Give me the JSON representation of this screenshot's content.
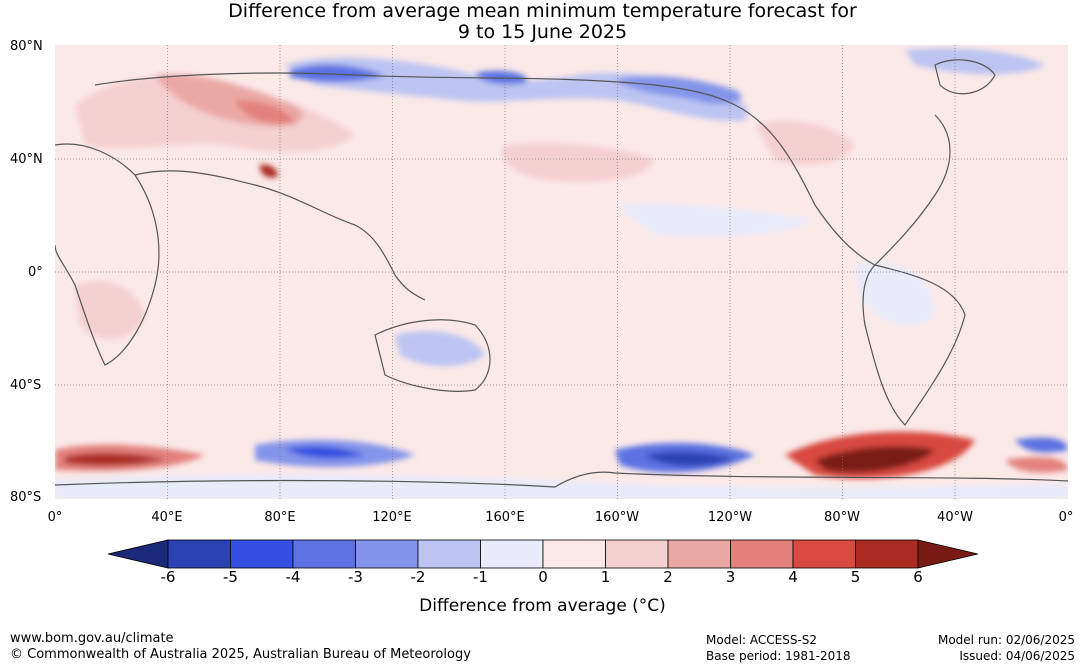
{
  "title_line1": "Difference from average mean minimum temperature forecast for",
  "title_line2": "9 to 15 June 2025",
  "lat_labels": [
    "80°N",
    "40°N",
    "0°",
    "40°S",
    "80°S"
  ],
  "lon_labels": [
    "0°",
    "40°E",
    "80°E",
    "120°E",
    "160°E",
    "160°W",
    "120°W",
    "80°W",
    "40°W",
    "0°"
  ],
  "colorbar": {
    "ticks": [
      "-6",
      "-5",
      "-4",
      "-3",
      "-2",
      "-1",
      "0",
      "1",
      "2",
      "3",
      "4",
      "5",
      "6"
    ],
    "colors": [
      "#1a2a78",
      "#2a42b4",
      "#3550e0",
      "#5c72e2",
      "#8494ea",
      "#bcc4f2",
      "#e8ebfa",
      "#fbe9e8",
      "#f4d0cf",
      "#eaa8a5",
      "#e3817d",
      "#d8493f",
      "#aa2b22",
      "#7a1a14"
    ],
    "title": "Difference from average (°C)"
  },
  "footer": {
    "url": "www.bom.gov.au/climate",
    "copyright": "© Commonwealth of Australia 2025, Australian Bureau of Meteorology",
    "model": "Model: ACCESS-S2",
    "base_period": "Base period: 1981-2018",
    "model_run": "Model run: 02/06/2025",
    "issued": "Issued: 04/06/2025"
  }
}
